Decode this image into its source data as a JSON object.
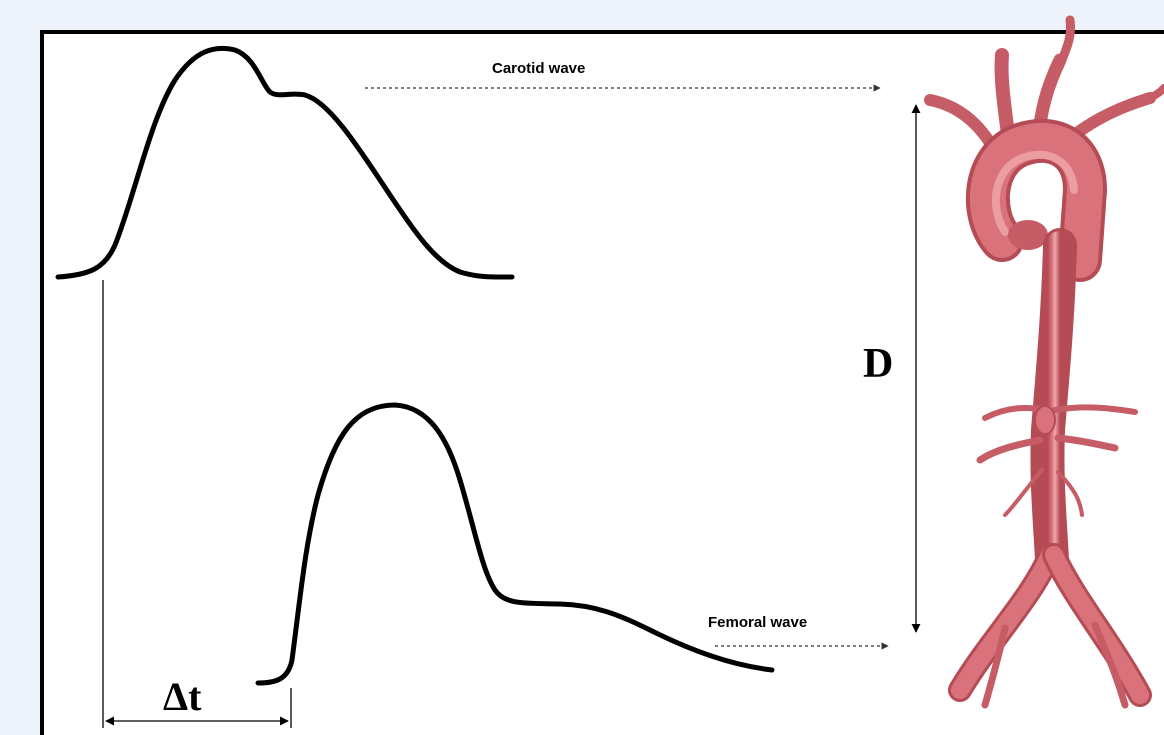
{
  "labels": {
    "carotid_wave": "Carotid wave",
    "femoral_wave": "Femoral wave",
    "distance": "D",
    "time_delay": "Δt"
  },
  "colors": {
    "background": "#eef3fb",
    "panel": "#ffffff",
    "wave_stroke": "#000000",
    "aorta_fill": "#d9727a",
    "aorta_highlight": "#f0a7ac",
    "aorta_shadow": "#b44b55"
  },
  "icons": {
    "aorta": "aorta-illustration-icon"
  }
}
